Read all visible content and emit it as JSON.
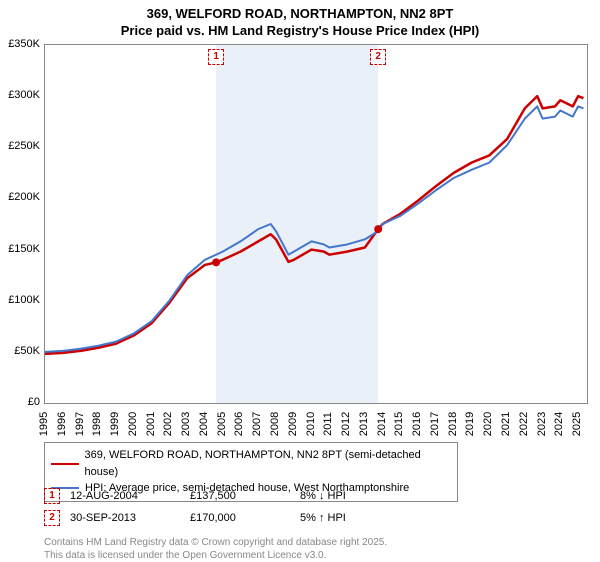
{
  "title_line1": "369, WELFORD ROAD, NORTHAMPTON, NN2 8PT",
  "title_line2": "Price paid vs. HM Land Registry's House Price Index (HPI)",
  "chart": {
    "type": "line",
    "background_color": "#ffffff",
    "border_color": "#888888",
    "x_start": 1995,
    "x_end": 2025.5,
    "ylim": [
      0,
      350000
    ],
    "ytick_step": 50000,
    "yticks": [
      "£0",
      "£50K",
      "£100K",
      "£150K",
      "£200K",
      "£250K",
      "£300K",
      "£350K"
    ],
    "xticks": [
      1995,
      1996,
      1997,
      1998,
      1999,
      2000,
      2001,
      2002,
      2003,
      2004,
      2005,
      2006,
      2007,
      2008,
      2009,
      2010,
      2011,
      2012,
      2013,
      2014,
      2015,
      2016,
      2017,
      2018,
      2019,
      2020,
      2021,
      2022,
      2023,
      2024,
      2025
    ],
    "shaded_regions": [
      {
        "from": 2004.63,
        "to": 2013.75,
        "color": "rgba(70,130,200,0.12)"
      }
    ],
    "markers": [
      {
        "label": "1",
        "year": 2004.63,
        "price": 137500,
        "color": "#cc0000"
      },
      {
        "label": "2",
        "year": 2013.75,
        "price": 170000,
        "color": "#cc0000"
      }
    ],
    "series": [
      {
        "name": "369, WELFORD ROAD, NORTHAMPTON, NN2 8PT (semi-detached house)",
        "color": "#cc0000",
        "width": 2.5,
        "data": [
          [
            1995,
            48000
          ],
          [
            1996,
            49000
          ],
          [
            1997,
            51000
          ],
          [
            1998,
            54000
          ],
          [
            1999,
            58000
          ],
          [
            2000,
            66000
          ],
          [
            2001,
            78000
          ],
          [
            2002,
            98000
          ],
          [
            2003,
            122000
          ],
          [
            2004,
            135000
          ],
          [
            2004.63,
            137500
          ],
          [
            2005,
            140000
          ],
          [
            2006,
            148000
          ],
          [
            2007,
            158000
          ],
          [
            2007.7,
            165000
          ],
          [
            2008,
            160000
          ],
          [
            2008.7,
            138000
          ],
          [
            2009,
            140000
          ],
          [
            2010,
            150000
          ],
          [
            2010.7,
            148000
          ],
          [
            2011,
            145000
          ],
          [
            2012,
            148000
          ],
          [
            2013,
            152000
          ],
          [
            2013.75,
            170000
          ],
          [
            2014,
            175000
          ],
          [
            2015,
            185000
          ],
          [
            2016,
            198000
          ],
          [
            2017,
            212000
          ],
          [
            2018,
            225000
          ],
          [
            2019,
            235000
          ],
          [
            2020,
            242000
          ],
          [
            2021,
            258000
          ],
          [
            2022,
            288000
          ],
          [
            2022.7,
            300000
          ],
          [
            2023,
            288000
          ],
          [
            2023.7,
            290000
          ],
          [
            2024,
            296000
          ],
          [
            2024.7,
            290000
          ],
          [
            2025,
            300000
          ],
          [
            2025.3,
            298000
          ]
        ]
      },
      {
        "name": "HPI: Average price, semi-detached house, West Northamptonshire",
        "color": "#4477cc",
        "width": 2,
        "data": [
          [
            1995,
            50000
          ],
          [
            1996,
            51000
          ],
          [
            1997,
            53000
          ],
          [
            1998,
            56000
          ],
          [
            1999,
            60000
          ],
          [
            2000,
            68000
          ],
          [
            2001,
            80000
          ],
          [
            2002,
            100000
          ],
          [
            2003,
            125000
          ],
          [
            2004,
            140000
          ],
          [
            2005,
            148000
          ],
          [
            2006,
            158000
          ],
          [
            2007,
            170000
          ],
          [
            2007.7,
            175000
          ],
          [
            2008,
            168000
          ],
          [
            2008.7,
            145000
          ],
          [
            2009,
            148000
          ],
          [
            2010,
            158000
          ],
          [
            2010.7,
            155000
          ],
          [
            2011,
            152000
          ],
          [
            2012,
            155000
          ],
          [
            2013,
            160000
          ],
          [
            2013.75,
            168000
          ],
          [
            2014,
            175000
          ],
          [
            2015,
            183000
          ],
          [
            2016,
            195000
          ],
          [
            2017,
            208000
          ],
          [
            2018,
            220000
          ],
          [
            2019,
            228000
          ],
          [
            2020,
            235000
          ],
          [
            2021,
            252000
          ],
          [
            2022,
            278000
          ],
          [
            2022.7,
            290000
          ],
          [
            2023,
            278000
          ],
          [
            2023.7,
            280000
          ],
          [
            2024,
            286000
          ],
          [
            2024.7,
            280000
          ],
          [
            2025,
            290000
          ],
          [
            2025.3,
            288000
          ]
        ]
      }
    ]
  },
  "legend": {
    "series1": "369, WELFORD ROAD, NORTHAMPTON, NN2 8PT (semi-detached house)",
    "series2": "HPI: Average price, semi-detached house, West Northamptonshire"
  },
  "data_rows": [
    {
      "marker": "1",
      "marker_color": "#cc0000",
      "date": "12-AUG-2004",
      "price": "£137,500",
      "delta": "8% ↓ HPI"
    },
    {
      "marker": "2",
      "marker_color": "#cc0000",
      "date": "30-SEP-2013",
      "price": "£170,000",
      "delta": "5% ↑ HPI"
    }
  ],
  "attribution_line1": "Contains HM Land Registry data © Crown copyright and database right 2025.",
  "attribution_line2": "This data is licensed under the Open Government Licence v3.0."
}
